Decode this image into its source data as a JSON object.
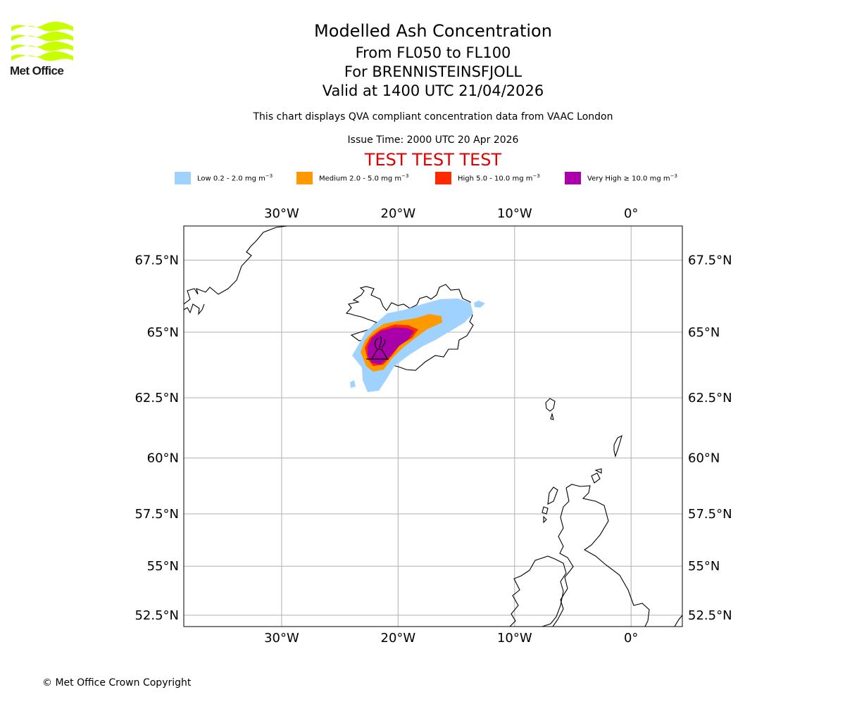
{
  "logo": {
    "text": "Met Office",
    "icon": "met-office-wave-logo"
  },
  "header": {
    "title": "Modelled Ash Concentration",
    "flight_levels": "From FL050 to FL100",
    "volcano": "For BRENNISTEINSFJOLL",
    "valid_time": "Valid at 1400 UTC 21/04/2026",
    "compliance_note": "This chart displays QVA compliant concentration data from VAAC London",
    "issue_time": "Issue Time: 2000 UTC 20 Apr 2026",
    "test_banner": "TEST TEST TEST"
  },
  "legend": [
    {
      "label": "Low 0.2 - 2.0 mg m",
      "color": "#a0d2ff"
    },
    {
      "label": "Medium 2.0 - 5.0 mg m",
      "color": "#ff9900"
    },
    {
      "label": "High 5.0 - 10.0 mg m",
      "color": "#ff2a00"
    },
    {
      "label": "Very High ≥ 10.0 mg m",
      "color": "#aa00aa"
    }
  ],
  "legend_unit_exponent": "−3",
  "map": {
    "longitude_ticks": [
      "30°W",
      "20°W",
      "10°W",
      "0°"
    ],
    "latitude_ticks": [
      "67.5°N",
      "65°N",
      "62.5°N",
      "60°N",
      "57.5°N",
      "55°N",
      "52.5°N"
    ],
    "lon_range": [
      -38.4,
      4.4
    ],
    "lat_range": [
      51.9,
      68.6
    ],
    "grid": true,
    "source_icon": "volcano-icon"
  },
  "footer": {
    "copyright": "© Met Office Crown Copyright"
  }
}
